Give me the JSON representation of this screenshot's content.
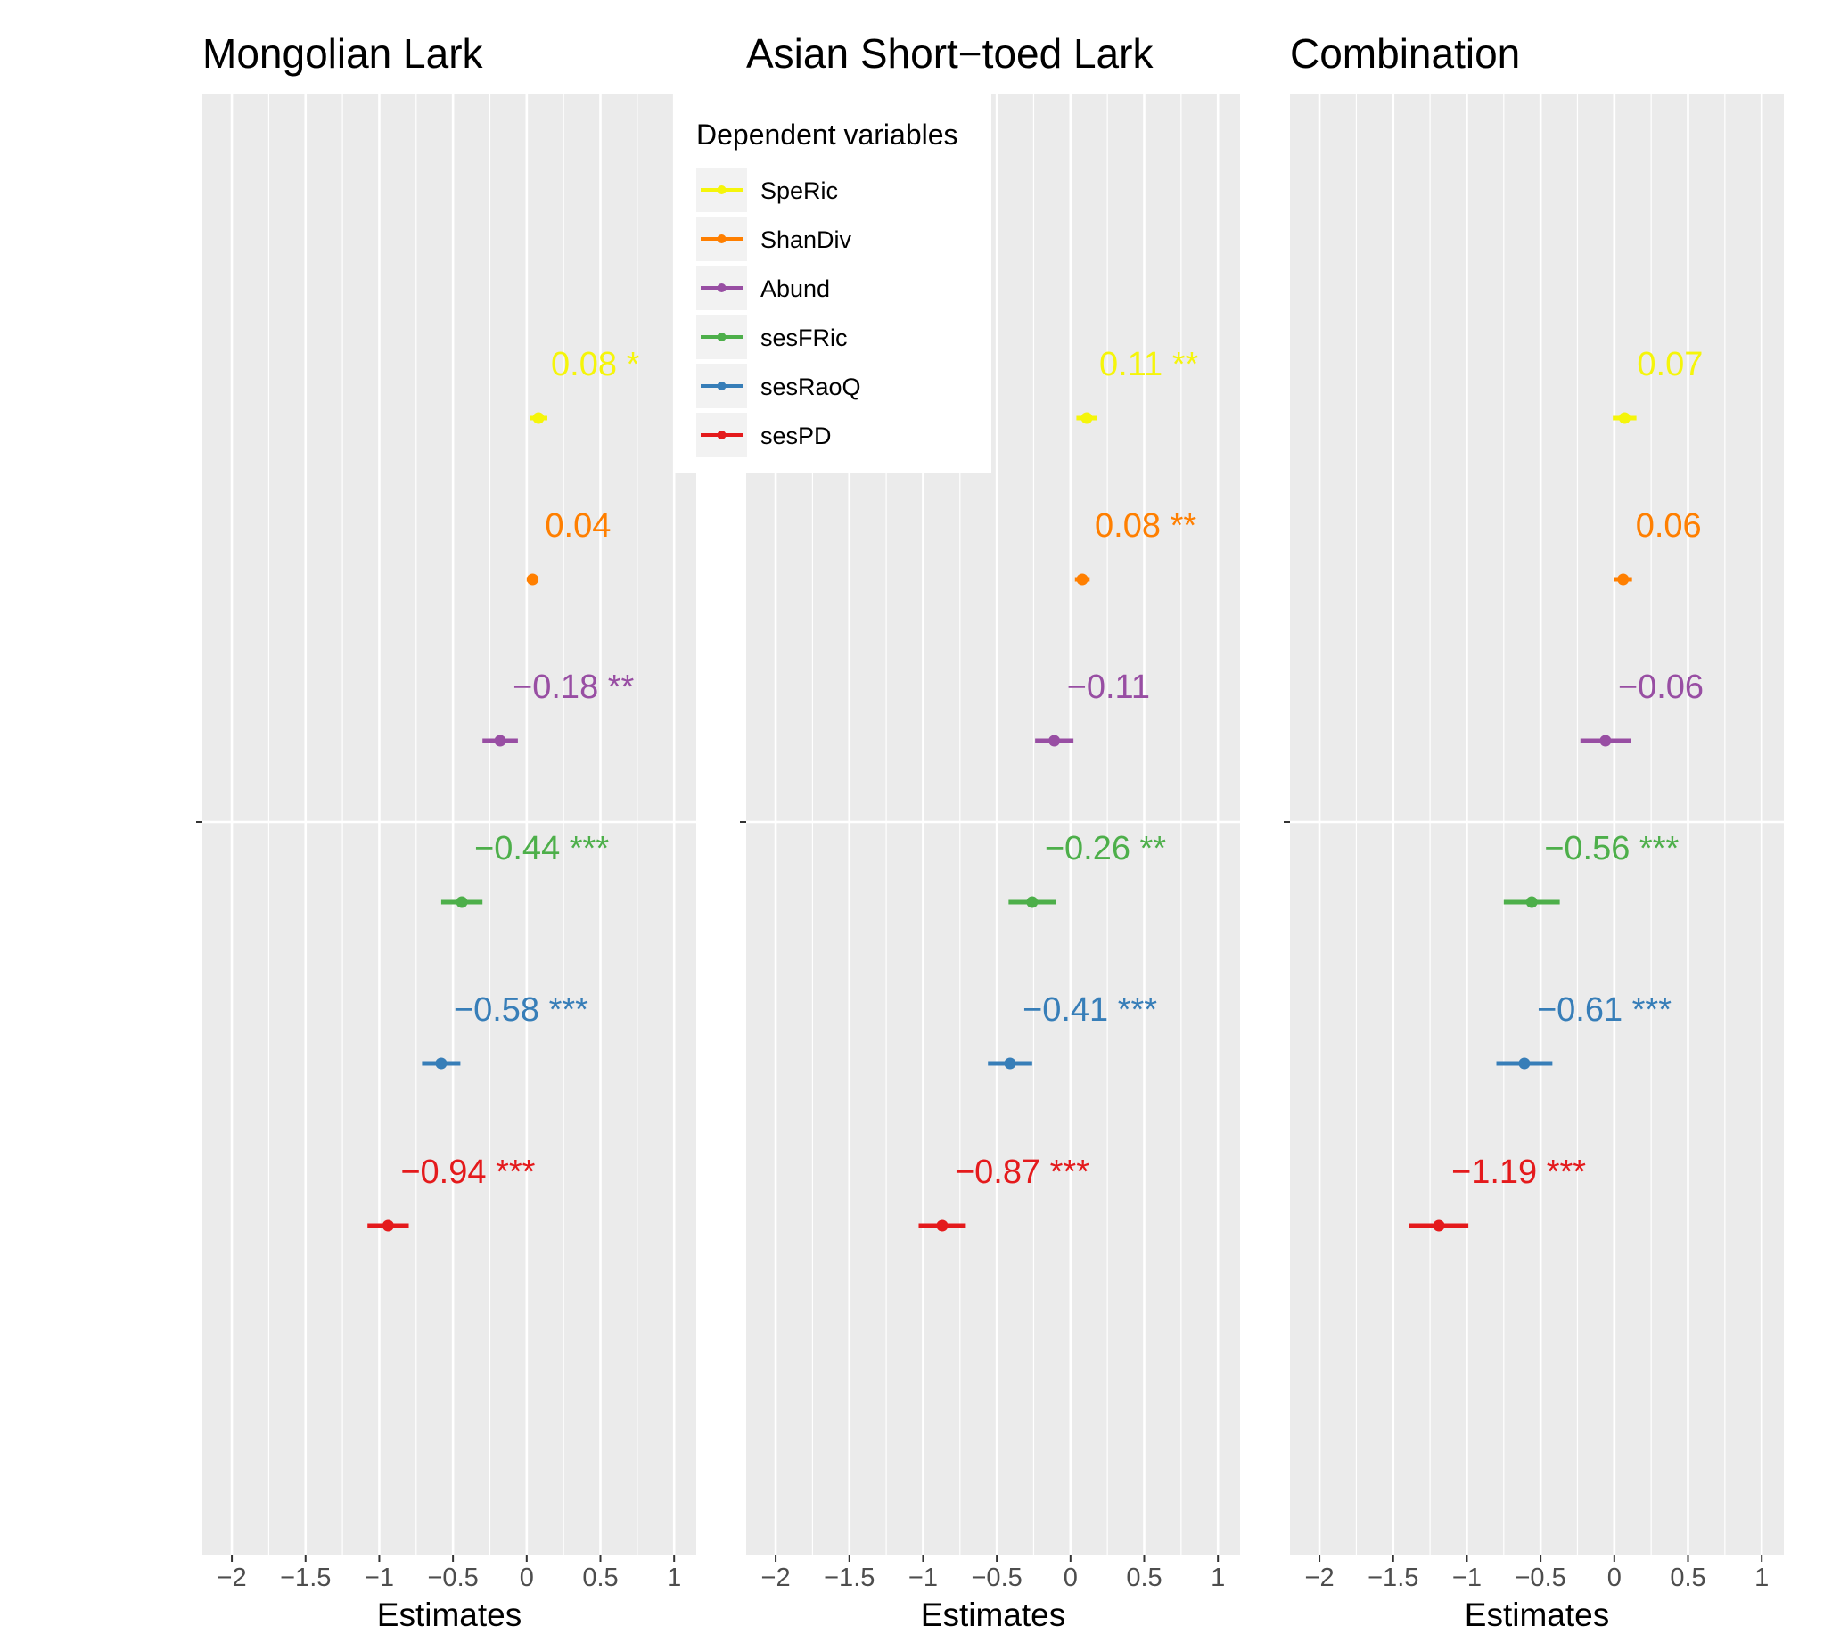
{
  "chart_data": {
    "type": "forest",
    "legend": {
      "title": "Dependent variables",
      "position": "top-center",
      "entries": [
        {
          "name": "SpeRic",
          "color": "#F5F50A"
        },
        {
          "name": "ShanDiv",
          "color": "#FF7F00"
        },
        {
          "name": "Abund",
          "color": "#984EA3"
        },
        {
          "name": "sesFRic",
          "color": "#4DAF4A"
        },
        {
          "name": "sesRaoQ",
          "color": "#377EB8"
        },
        {
          "name": "sesPD",
          "color": "#E41A1C"
        }
      ]
    },
    "xlabel": "Estimates",
    "xlim": [
      -2.2,
      1.15
    ],
    "xticks": [
      -2,
      -1.5,
      -1,
      -0.5,
      0,
      0.5,
      1
    ],
    "xtick_labels": [
      "−2",
      "−1.5",
      "−1",
      "−0.5",
      "0",
      "0.5",
      "1"
    ],
    "grid": true,
    "panels": [
      {
        "title": "Mongolian Lark",
        "estimates": [
          {
            "variable": "SpeRic",
            "estimate": 0.08,
            "ci": [
              0.02,
              0.14
            ],
            "label": "0.08 *"
          },
          {
            "variable": "ShanDiv",
            "estimate": 0.04,
            "ci": [
              0.0,
              0.08
            ],
            "label": "0.04"
          },
          {
            "variable": "Abund",
            "estimate": -0.18,
            "ci": [
              -0.3,
              -0.06
            ],
            "label": "−0.18 **"
          },
          {
            "variable": "sesFRic",
            "estimate": -0.44,
            "ci": [
              -0.58,
              -0.3
            ],
            "label": "−0.44 ***"
          },
          {
            "variable": "sesRaoQ",
            "estimate": -0.58,
            "ci": [
              -0.71,
              -0.45
            ],
            "label": "−0.58 ***"
          },
          {
            "variable": "sesPD",
            "estimate": -0.94,
            "ci": [
              -1.08,
              -0.8
            ],
            "label": "−0.94 ***"
          }
        ]
      },
      {
        "title": "Asian Short−toed Lark",
        "estimates": [
          {
            "variable": "SpeRic",
            "estimate": 0.11,
            "ci": [
              0.04,
              0.18
            ],
            "label": "0.11 **"
          },
          {
            "variable": "ShanDiv",
            "estimate": 0.08,
            "ci": [
              0.03,
              0.13
            ],
            "label": "0.08 **"
          },
          {
            "variable": "Abund",
            "estimate": -0.11,
            "ci": [
              -0.24,
              0.02
            ],
            "label": "−0.11"
          },
          {
            "variable": "sesFRic",
            "estimate": -0.26,
            "ci": [
              -0.42,
              -0.1
            ],
            "label": "−0.26 **"
          },
          {
            "variable": "sesRaoQ",
            "estimate": -0.41,
            "ci": [
              -0.56,
              -0.26
            ],
            "label": "−0.41 ***"
          },
          {
            "variable": "sesPD",
            "estimate": -0.87,
            "ci": [
              -1.03,
              -0.71
            ],
            "label": "−0.87 ***"
          }
        ]
      },
      {
        "title": "Combination",
        "estimates": [
          {
            "variable": "SpeRic",
            "estimate": 0.07,
            "ci": [
              -0.01,
              0.15
            ],
            "label": "0.07"
          },
          {
            "variable": "ShanDiv",
            "estimate": 0.06,
            "ci": [
              0.0,
              0.12
            ],
            "label": "0.06"
          },
          {
            "variable": "Abund",
            "estimate": -0.06,
            "ci": [
              -0.23,
              0.11
            ],
            "label": "−0.06"
          },
          {
            "variable": "sesFRic",
            "estimate": -0.56,
            "ci": [
              -0.75,
              -0.37
            ],
            "label": "−0.56 ***"
          },
          {
            "variable": "sesRaoQ",
            "estimate": -0.61,
            "ci": [
              -0.8,
              -0.42
            ],
            "label": "−0.61 ***"
          },
          {
            "variable": "sesPD",
            "estimate": -1.19,
            "ci": [
              -1.39,
              -0.99
            ],
            "label": "−1.19 ***"
          }
        ]
      }
    ]
  }
}
